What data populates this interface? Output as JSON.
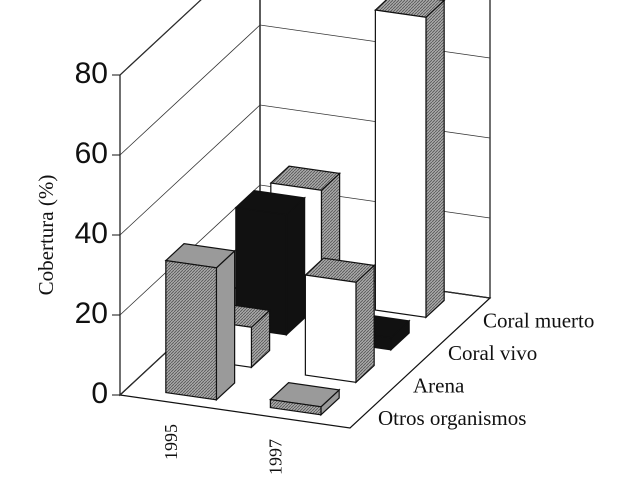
{
  "chart_data": {
    "type": "bar3d",
    "y_label": "Cobertura (%)",
    "categories": [
      "1995",
      "1997"
    ],
    "series": [
      {
        "name": "Otros organismos",
        "color": "#9a9a9a",
        "values": [
          33,
          2
        ]
      },
      {
        "name": "Arena",
        "color": "#ffffff",
        "values": [
          10,
          25
        ]
      },
      {
        "name": "Coral vivo",
        "color": "#111111",
        "values": [
          30,
          3
        ]
      },
      {
        "name": "Coral muerto",
        "color": "#ffffff",
        "values": [
          28,
          75
        ]
      }
    ],
    "ylim": [
      0,
      80
    ],
    "yticks": [
      0,
      20,
      40,
      60,
      80
    ],
    "grid": true
  }
}
